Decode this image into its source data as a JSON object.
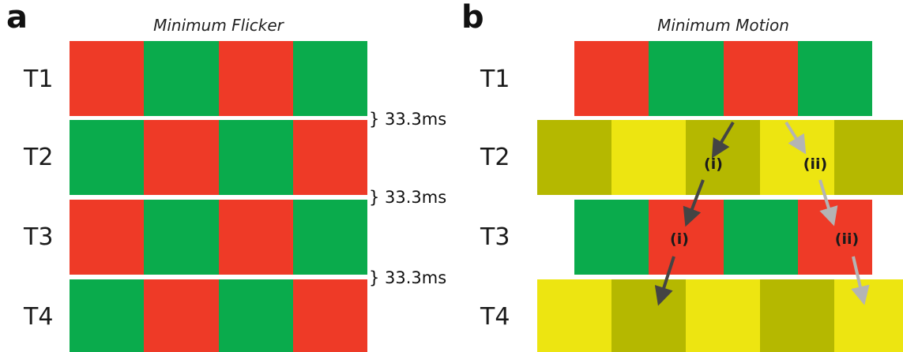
{
  "colors": {
    "red": "#ee3a27",
    "green": "#0aab4c",
    "yellow": "#ede511",
    "olive": "#b5b800",
    "arrow_dark": "#444444",
    "arrow_light": "#b4b4b4"
  },
  "panel_a": {
    "letter": "a",
    "title": "Minimum Flicker",
    "rows": [
      {
        "label": "T1",
        "cells": [
          "red",
          "green",
          "red",
          "green"
        ]
      },
      {
        "label": "T2",
        "cells": [
          "green",
          "red",
          "green",
          "red"
        ]
      },
      {
        "label": "T3",
        "cells": [
          "red",
          "green",
          "red",
          "green"
        ]
      },
      {
        "label": "T4",
        "cells": [
          "green",
          "red",
          "green",
          "red"
        ]
      }
    ],
    "intervals": [
      "} 33.3ms",
      "} 33.3ms",
      "} 33.3ms"
    ]
  },
  "panel_b": {
    "letter": "b",
    "title": "Minimum Motion",
    "rows": [
      {
        "label": "T1",
        "cells": [
          "red",
          "green",
          "red",
          "green"
        ]
      },
      {
        "label": "T2",
        "cells": [
          "olive",
          "yellow",
          "olive",
          "yellow",
          "olive"
        ]
      },
      {
        "label": "T3",
        "cells": [
          "green",
          "red",
          "green",
          "red"
        ]
      },
      {
        "label": "T4",
        "cells": [
          "yellow",
          "olive",
          "yellow",
          "olive",
          "yellow"
        ]
      }
    ],
    "annotations": {
      "path_i": "(i)",
      "path_ii": "(ii)"
    }
  }
}
